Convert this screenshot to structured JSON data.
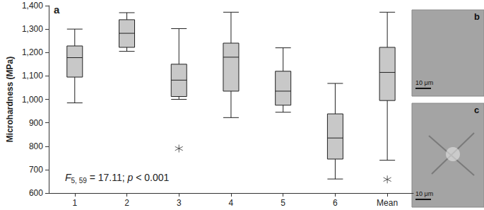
{
  "chart_data": {
    "type": "boxplot",
    "panel_label": "a",
    "y_label": "Microhardness (MPa)",
    "categories": [
      "1",
      "2",
      "3",
      "4",
      "5",
      "6",
      "Mean"
    ],
    "boxes": [
      [
        985,
        1095,
        1178,
        1228,
        1300
      ],
      [
        1205,
        1222,
        1282,
        1340,
        1370
      ],
      [
        1000,
        1012,
        1082,
        1150,
        1302
      ],
      [
        922,
        1035,
        1180,
        1240,
        1372
      ],
      [
        945,
        975,
        1035,
        1120,
        1220
      ],
      [
        660,
        745,
        835,
        938,
        1068
      ],
      [
        740,
        995,
        1115,
        1222,
        1372
      ]
    ],
    "outliers": [
      {
        "category": "3",
        "value": 790
      },
      {
        "category": "Mean",
        "value": 658
      }
    ],
    "ylim": [
      600,
      1400
    ],
    "yticks": [
      600,
      700,
      800,
      900,
      1000,
      1100,
      1200,
      1300,
      1400
    ],
    "color": "#c8c8c8",
    "marker": "asterisk",
    "grid": false,
    "annotation": [
      {
        "text": "F",
        "style": "italic"
      },
      {
        "text": "5, 59",
        "style": "subscript"
      },
      {
        "text": " = 17.11; "
      },
      {
        "text": "p",
        "style": "italic"
      },
      {
        "text": " < 0.001"
      }
    ]
  },
  "panels": [
    {
      "label": "b",
      "scale_bar": "10 μm"
    },
    {
      "label": "c",
      "scale_bar": "10 μm"
    }
  ]
}
